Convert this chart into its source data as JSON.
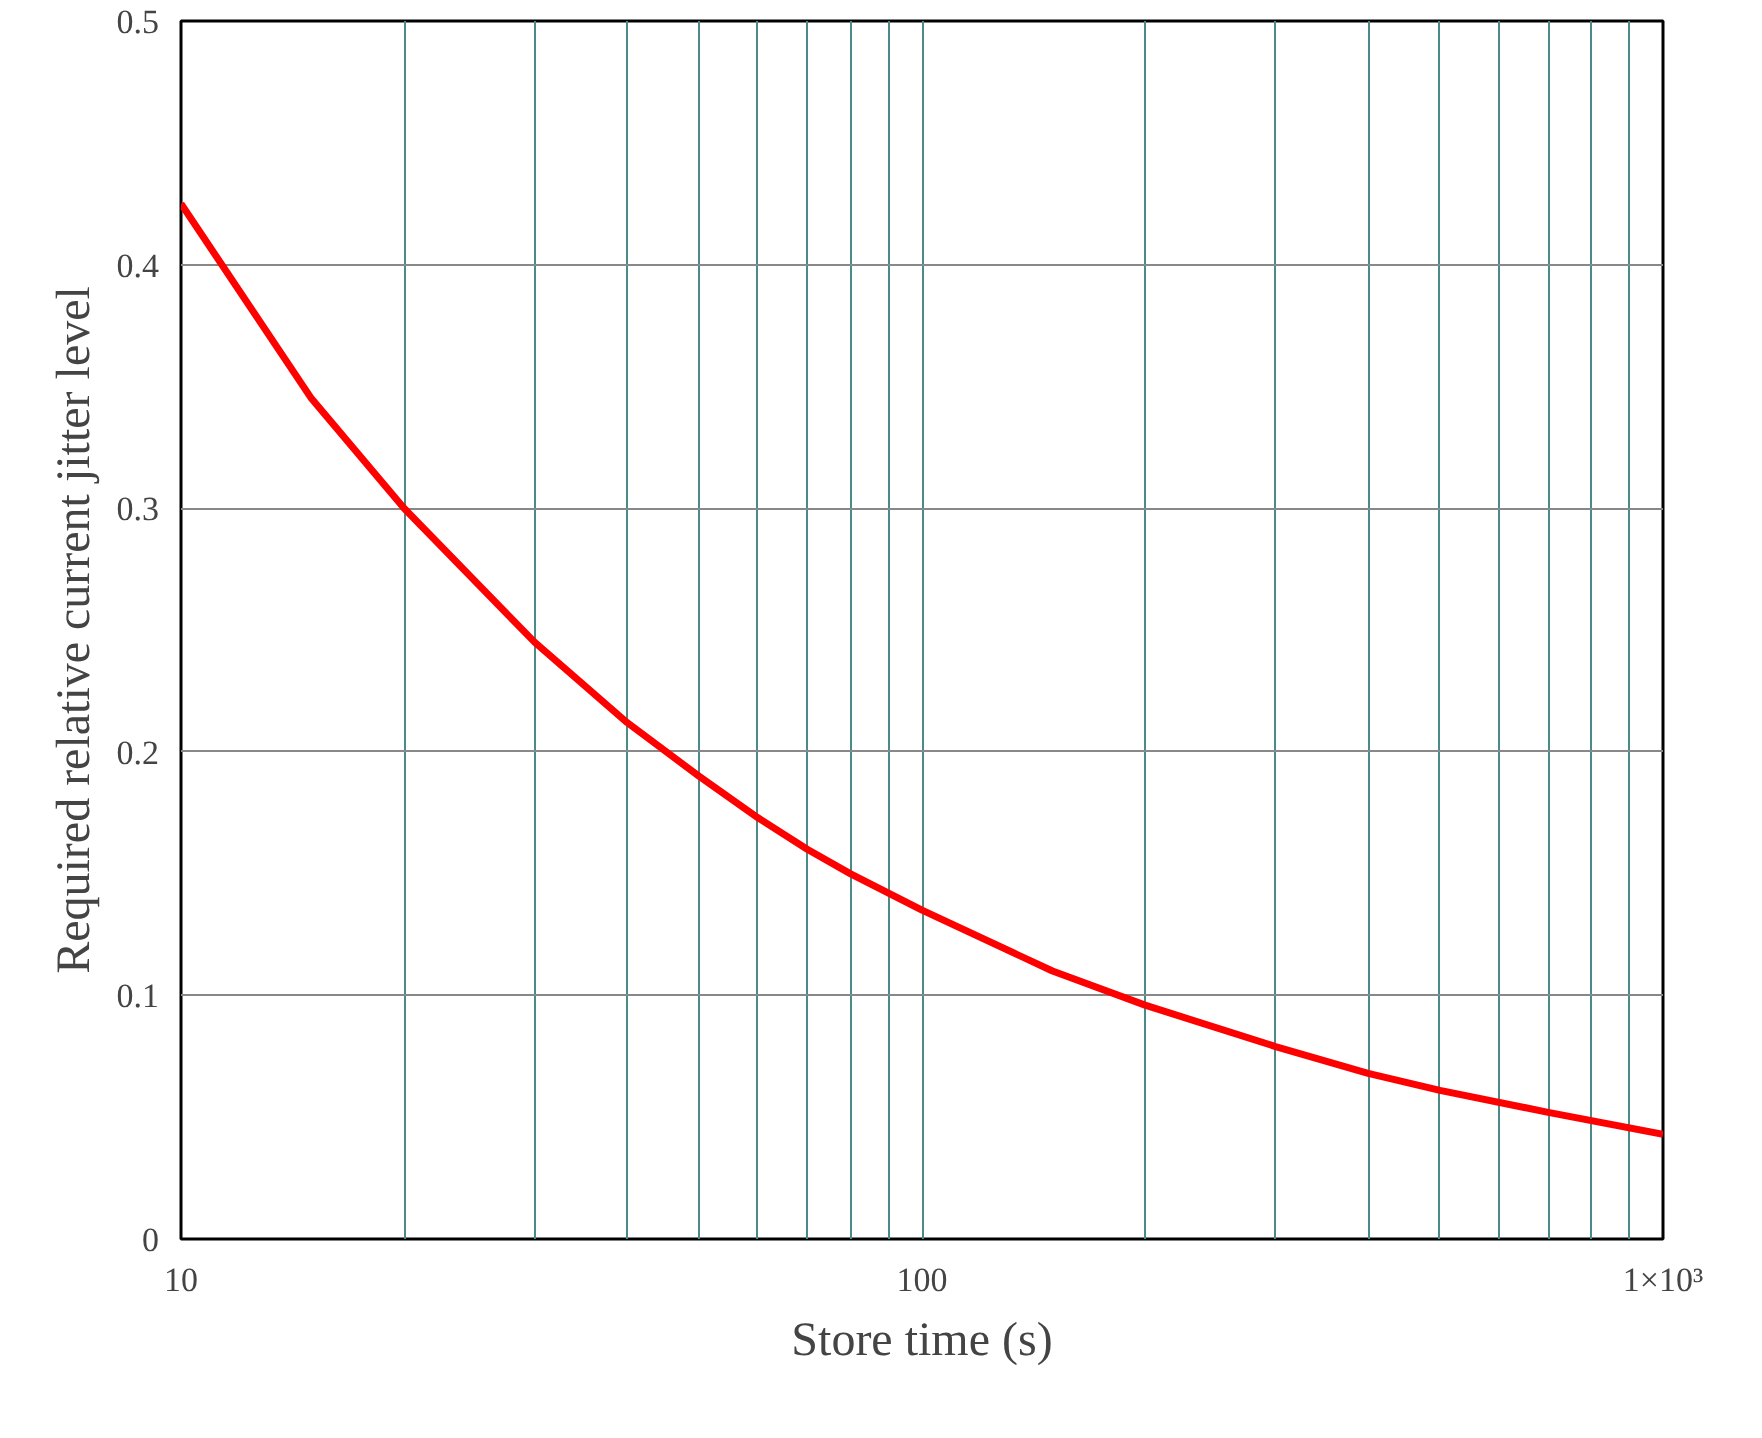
{
  "chart_data": {
    "type": "line",
    "xlabel": "Store time (s)",
    "ylabel": "Required relative current jitter level",
    "log": "x",
    "grid": true,
    "marker": "none",
    "line_style": "solid",
    "xlim": [
      10,
      1000
    ],
    "ylim": [
      0,
      0.5
    ],
    "xticks": [
      10,
      {
        "value": 20,
        "label": null
      },
      {
        "value": 30,
        "label": null
      },
      {
        "value": 40,
        "label": null
      },
      {
        "value": 50,
        "label": null
      },
      {
        "value": 60,
        "label": null
      },
      {
        "value": 70,
        "label": null
      },
      {
        "value": 80,
        "label": null
      },
      {
        "value": 90,
        "label": null
      },
      100,
      {
        "value": 200,
        "label": null
      },
      {
        "value": 300,
        "label": null
      },
      {
        "value": 400,
        "label": null
      },
      {
        "value": 500,
        "label": null
      },
      {
        "value": 600,
        "label": null
      },
      {
        "value": 700,
        "label": null
      },
      {
        "value": 800,
        "label": null
      },
      {
        "value": 900,
        "label": null
      },
      {
        "value": 1000,
        "label": "1×10³"
      }
    ],
    "yticks": [
      0,
      0.1,
      0.2,
      0.3,
      0.4,
      0.5
    ],
    "x": [
      10,
      15,
      20,
      30,
      40,
      50,
      60,
      70,
      80,
      100,
      150,
      200,
      300,
      400,
      500,
      700,
      1000
    ],
    "series": [
      {
        "color": "#ff0000",
        "values": [
          0.425,
          0.345,
          0.3,
          0.245,
          0.212,
          0.19,
          0.173,
          0.16,
          0.15,
          0.135,
          0.11,
          0.096,
          0.079,
          0.068,
          0.061,
          0.052,
          0.043
        ]
      }
    ]
  }
}
